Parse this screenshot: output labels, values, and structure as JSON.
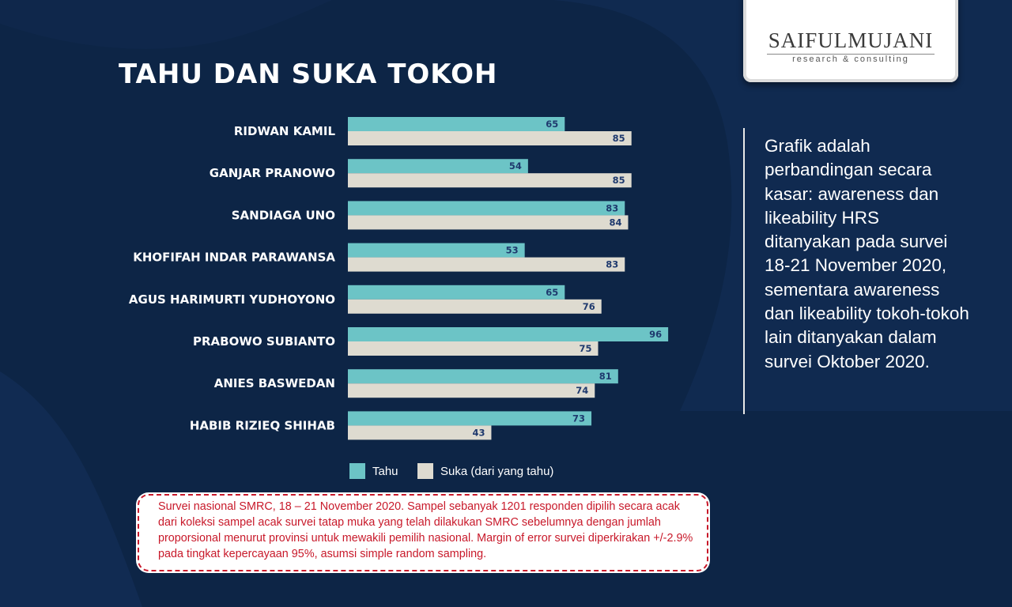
{
  "page": {
    "title": "TAHU DAN SUKA TOKOH",
    "logo": {
      "name": "SAIFULMUJANI",
      "tagline": "research & consulting"
    },
    "note": "Grafik adalah perbandingan secara kasar: awareness dan likeability HRS ditanyakan pada survei 18-21 November 2020, sementara awareness dan likeability tokoh-tokoh lain ditanyakan dalam survei Oktober 2020.",
    "footnote": "Survei nasional SMRC, 18 – 21 November 2020. Sampel sebanyak 1201 responden dipilih secara acak dari koleksi sampel acak survei tatap muka yang telah dilakukan SMRC sebelumnya dengan jumlah proporsional menurut provinsi untuk mewakili pemilih nasional. Margin of error survei diperkirakan +/-2.9% pada tingkat kepercayaan 95%, asumsi simple random sampling.",
    "colors": {
      "background": "#0d2546",
      "tahu": "#6cc4c6",
      "suka": "#dedbd0",
      "value_label": "#1f3a6e",
      "footnote": "#c8192a"
    }
  },
  "chart_data": {
    "type": "bar",
    "orientation": "horizontal",
    "title": "TAHU DAN SUKA TOKOH",
    "categories": [
      "RIDWAN KAMIL",
      "GANJAR PRANOWO",
      "SANDIAGA UNO",
      "KHOFIFAH INDAR PARAWANSA",
      "AGUS HARIMURTI YUDHOYONO",
      "PRABOWO SUBIANTO",
      "ANIES BASWEDAN",
      "HABIB RIZIEQ SHIHAB"
    ],
    "series": [
      {
        "name": "Tahu",
        "values": [
          65,
          54,
          83,
          53,
          65,
          96,
          81,
          73
        ]
      },
      {
        "name": "Suka (dari yang tahu)",
        "values": [
          85,
          85,
          84,
          83,
          76,
          75,
          74,
          43
        ]
      }
    ],
    "xlim": [
      0,
      100
    ],
    "grid": false,
    "legend": "bottom",
    "data_labels": true
  }
}
